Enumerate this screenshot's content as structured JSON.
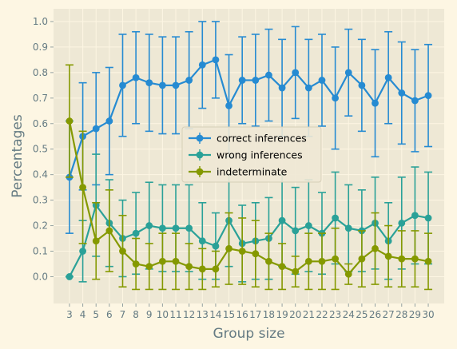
{
  "chart_data": {
    "type": "line",
    "title": "",
    "xlabel": "Group size",
    "ylabel": "Percentages",
    "x": [
      3,
      4,
      5,
      6,
      7,
      8,
      9,
      10,
      11,
      12,
      13,
      14,
      15,
      16,
      17,
      18,
      19,
      20,
      21,
      22,
      23,
      24,
      25,
      26,
      27,
      28,
      29,
      30
    ],
    "x_tick_labels": [
      "3",
      "4",
      "5",
      "6",
      "7",
      "8",
      "9",
      "10",
      "11",
      "12",
      "13",
      "14",
      "15",
      "16",
      "17",
      "18",
      "19",
      "20",
      "21",
      "22",
      "23",
      "24",
      "25",
      "26",
      "27",
      "28",
      "29",
      "30"
    ],
    "y_ticks": [
      0.0,
      0.1,
      0.2,
      0.3,
      0.4,
      0.5,
      0.6,
      0.7,
      0.8,
      0.9,
      1.0
    ],
    "y_tick_labels": [
      "0.0",
      "0.1",
      "0.2",
      "0.3",
      "0.4",
      "0.5",
      "0.6",
      "0.7",
      "0.8",
      "0.9",
      "1.0"
    ],
    "xlim": [
      1.8,
      31.2
    ],
    "ylim": [
      -0.105,
      1.05
    ],
    "grid": true,
    "legend_position": "center",
    "series": [
      {
        "name": "correct inferences",
        "color": "#268bd2",
        "values": [
          0.39,
          0.55,
          0.58,
          0.61,
          0.75,
          0.78,
          0.76,
          0.75,
          0.75,
          0.77,
          0.83,
          0.85,
          0.67,
          0.77,
          0.77,
          0.79,
          0.74,
          0.8,
          0.74,
          0.77,
          0.7,
          0.8,
          0.75,
          0.68,
          0.78,
          0.72,
          0.69,
          0.71
        ],
        "errors": [
          0.22,
          0.21,
          0.22,
          0.21,
          0.2,
          0.18,
          0.19,
          0.19,
          0.19,
          0.19,
          0.17,
          0.15,
          0.2,
          0.17,
          0.18,
          0.18,
          0.19,
          0.18,
          0.19,
          0.18,
          0.2,
          0.17,
          0.18,
          0.21,
          0.18,
          0.2,
          0.2,
          0.2
        ]
      },
      {
        "name": "wrong inferences",
        "color": "#2aa198",
        "values": [
          0.0,
          0.1,
          0.28,
          0.21,
          0.15,
          0.17,
          0.2,
          0.19,
          0.19,
          0.19,
          0.14,
          0.12,
          0.22,
          0.13,
          0.14,
          0.15,
          0.22,
          0.18,
          0.2,
          0.17,
          0.23,
          0.19,
          0.18,
          0.21,
          0.14,
          0.21,
          0.24,
          0.23
        ],
        "errors": [
          0.0,
          0.12,
          0.2,
          0.17,
          0.15,
          0.16,
          0.17,
          0.17,
          0.17,
          0.17,
          0.15,
          0.13,
          0.18,
          0.15,
          0.15,
          0.16,
          0.18,
          0.17,
          0.18,
          0.16,
          0.18,
          0.17,
          0.16,
          0.18,
          0.15,
          0.18,
          0.19,
          0.18
        ]
      },
      {
        "name": "indeterminate",
        "color": "#859900",
        "values": [
          0.61,
          0.35,
          0.14,
          0.18,
          0.1,
          0.05,
          0.04,
          0.06,
          0.06,
          0.04,
          0.03,
          0.03,
          0.11,
          0.1,
          0.09,
          0.06,
          0.04,
          0.02,
          0.06,
          0.06,
          0.07,
          0.01,
          0.07,
          0.11,
          0.08,
          0.07,
          0.07,
          0.06
        ],
        "errors": [
          0.22,
          0.22,
          0.15,
          0.16,
          0.14,
          0.1,
          0.09,
          0.11,
          0.11,
          0.09,
          0.08,
          0.07,
          0.14,
          0.13,
          0.13,
          0.11,
          0.09,
          0.06,
          0.11,
          0.11,
          0.12,
          0.04,
          0.11,
          0.14,
          0.12,
          0.11,
          0.11,
          0.11
        ]
      }
    ]
  }
}
